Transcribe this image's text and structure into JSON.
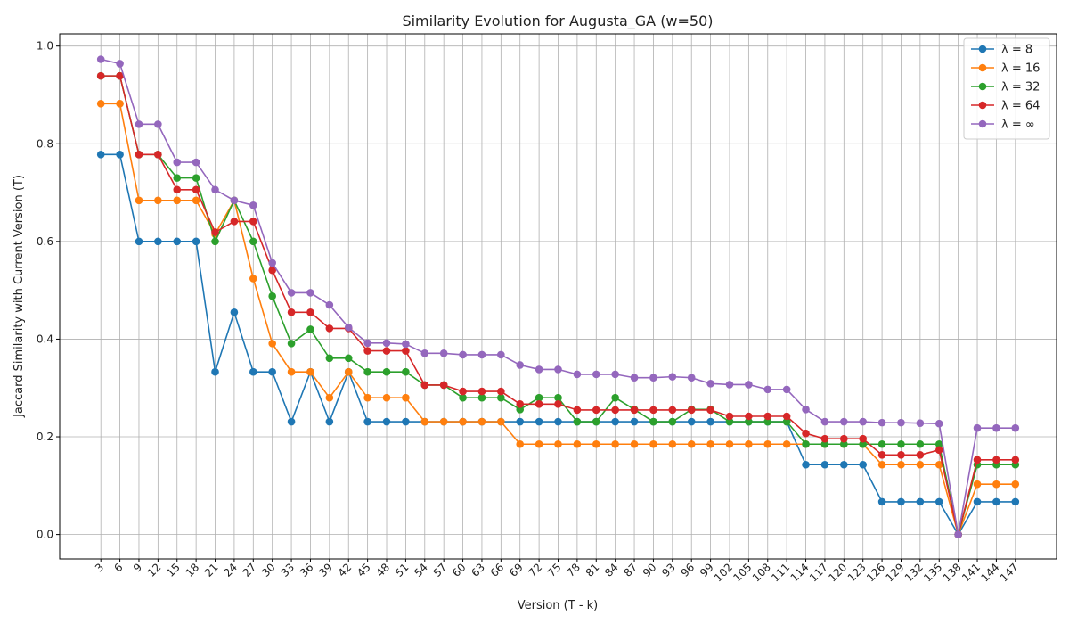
{
  "chart_data": {
    "type": "line",
    "title": "Similarity Evolution for Augusta_GA (w=50)",
    "xlabel": "Version (T - k)",
    "ylabel": "Jaccard Similarity with Current Version (T)",
    "ylim": [
      -0.05,
      1.025
    ],
    "yticks": [
      0.0,
      0.2,
      0.4,
      0.6,
      0.8,
      1.0
    ],
    "grid": true,
    "legend_position": "top-right",
    "x": [
      3,
      6,
      9,
      12,
      15,
      18,
      21,
      24,
      27,
      30,
      33,
      36,
      39,
      42,
      45,
      48,
      51,
      54,
      57,
      60,
      63,
      66,
      69,
      72,
      75,
      78,
      81,
      84,
      87,
      90,
      93,
      96,
      99,
      102,
      105,
      108,
      111,
      114,
      117,
      120,
      123,
      126,
      129,
      132,
      135,
      138,
      141,
      144,
      147
    ],
    "series": [
      {
        "name": "λ = 8",
        "color": "#1f77b4",
        "values": [
          0.778,
          0.778,
          0.6,
          0.6,
          0.6,
          0.6,
          0.333,
          0.455,
          0.333,
          0.333,
          0.231,
          0.333,
          0.231,
          0.333,
          0.231,
          0.231,
          0.231,
          0.231,
          0.231,
          0.231,
          0.231,
          0.231,
          0.231,
          0.231,
          0.231,
          0.231,
          0.231,
          0.231,
          0.231,
          0.231,
          0.231,
          0.231,
          0.231,
          0.231,
          0.231,
          0.231,
          0.231,
          0.143,
          0.143,
          0.143,
          0.143,
          0.067,
          0.067,
          0.067,
          0.067,
          0.0,
          0.067,
          0.067,
          0.067
        ]
      },
      {
        "name": "λ = 16",
        "color": "#ff7f0e",
        "values": [
          0.882,
          0.882,
          0.684,
          0.684,
          0.684,
          0.684,
          0.615,
          0.684,
          0.524,
          0.391,
          0.333,
          0.333,
          0.28,
          0.333,
          0.28,
          0.28,
          0.28,
          0.231,
          0.231,
          0.231,
          0.231,
          0.231,
          0.185,
          0.185,
          0.185,
          0.185,
          0.185,
          0.185,
          0.185,
          0.185,
          0.185,
          0.185,
          0.185,
          0.185,
          0.185,
          0.185,
          0.185,
          0.185,
          0.185,
          0.185,
          0.185,
          0.143,
          0.143,
          0.143,
          0.143,
          0.0,
          0.103,
          0.103,
          0.103
        ]
      },
      {
        "name": "λ = 32",
        "color": "#2ca02c",
        "values": [
          0.939,
          0.939,
          0.778,
          0.778,
          0.73,
          0.73,
          0.6,
          0.684,
          0.6,
          0.488,
          0.391,
          0.42,
          0.361,
          0.361,
          0.333,
          0.333,
          0.333,
          0.306,
          0.306,
          0.28,
          0.28,
          0.28,
          0.256,
          0.28,
          0.28,
          0.231,
          0.231,
          0.28,
          0.256,
          0.231,
          0.231,
          0.256,
          0.256,
          0.231,
          0.231,
          0.231,
          0.231,
          0.185,
          0.185,
          0.185,
          0.185,
          0.185,
          0.185,
          0.185,
          0.185,
          0.0,
          0.143,
          0.143,
          0.143
        ]
      },
      {
        "name": "λ = 64",
        "color": "#d62728",
        "values": [
          0.939,
          0.939,
          0.778,
          0.778,
          0.706,
          0.706,
          0.619,
          0.641,
          0.641,
          0.541,
          0.455,
          0.455,
          0.422,
          0.422,
          0.376,
          0.376,
          0.376,
          0.306,
          0.306,
          0.293,
          0.293,
          0.293,
          0.267,
          0.267,
          0.267,
          0.255,
          0.255,
          0.255,
          0.255,
          0.255,
          0.255,
          0.255,
          0.255,
          0.242,
          0.242,
          0.242,
          0.242,
          0.207,
          0.196,
          0.196,
          0.196,
          0.163,
          0.163,
          0.163,
          0.173,
          0.0,
          0.153,
          0.153,
          0.153
        ]
      },
      {
        "name": "λ = ∞",
        "color": "#9467bd",
        "values": [
          0.973,
          0.964,
          0.84,
          0.84,
          0.762,
          0.762,
          0.706,
          0.684,
          0.674,
          0.556,
          0.495,
          0.495,
          0.47,
          0.424,
          0.392,
          0.392,
          0.39,
          0.371,
          0.371,
          0.368,
          0.368,
          0.368,
          0.347,
          0.338,
          0.338,
          0.328,
          0.328,
          0.328,
          0.321,
          0.321,
          0.323,
          0.321,
          0.309,
          0.307,
          0.307,
          0.297,
          0.297,
          0.256,
          0.231,
          0.231,
          0.231,
          0.229,
          0.229,
          0.228,
          0.227,
          0.0,
          0.218,
          0.218,
          0.218
        ]
      }
    ]
  }
}
